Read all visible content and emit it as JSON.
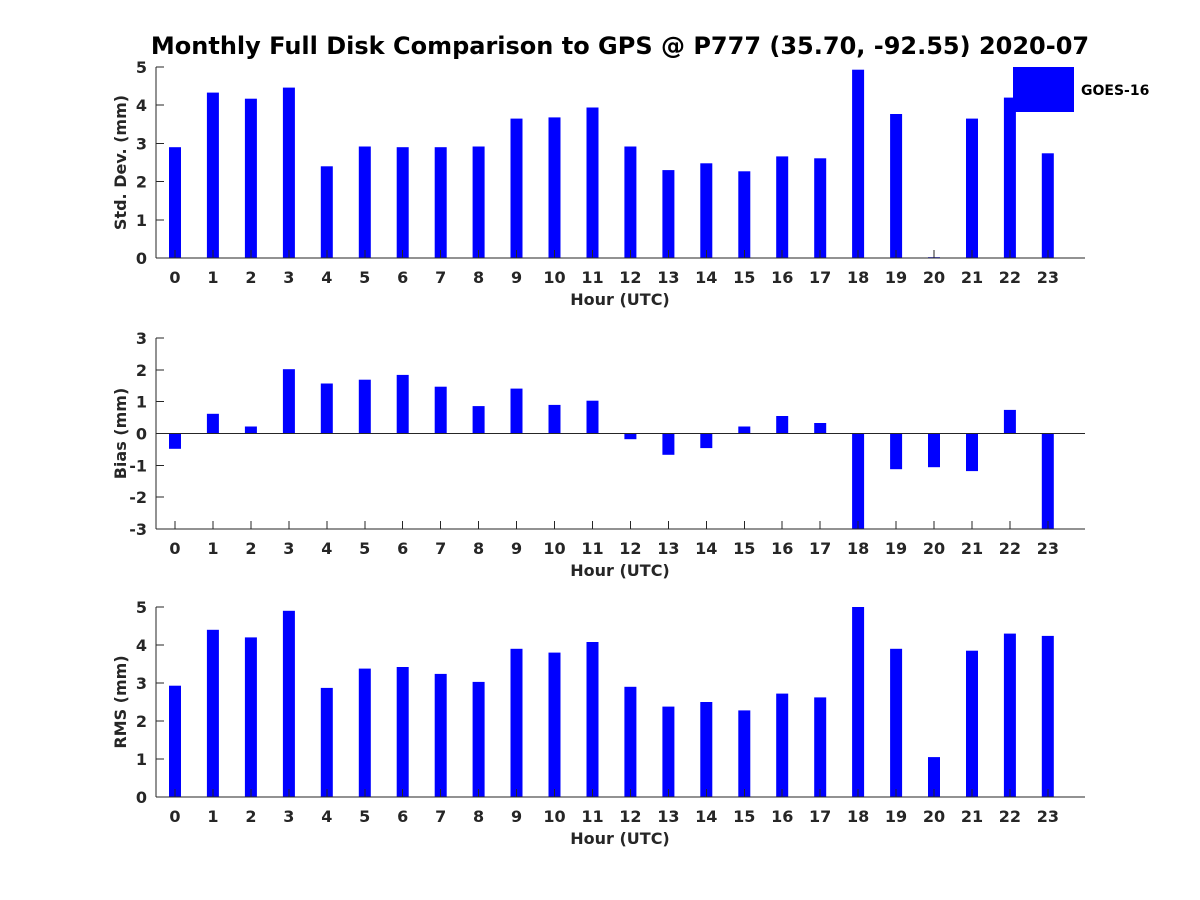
{
  "title": "Monthly Full Disk Comparison to GPS @ P777 (35.70, -92.55) 2020-07",
  "legend": {
    "label": "GOES-16",
    "color": "#0000ff"
  },
  "chart_data": [
    {
      "type": "bar",
      "id": "stddev",
      "ylabel": "Std. Dev. (mm)",
      "xlabel": "Hour (UTC)",
      "ylim": [
        0,
        5
      ],
      "yticks": [
        "0",
        "1",
        "2",
        "3",
        "4",
        "5"
      ],
      "categories": [
        "0",
        "1",
        "2",
        "3",
        "4",
        "5",
        "6",
        "7",
        "8",
        "9",
        "10",
        "11",
        "12",
        "13",
        "14",
        "15",
        "16",
        "17",
        "18",
        "19",
        "20",
        "21",
        "22",
        "23"
      ],
      "series": [
        {
          "name": "GOES-16",
          "color": "#0000ff",
          "values": [
            2.9,
            4.33,
            4.17,
            4.46,
            2.4,
            2.92,
            2.9,
            2.9,
            2.92,
            3.65,
            3.68,
            3.94,
            2.92,
            2.3,
            2.48,
            2.27,
            2.66,
            2.61,
            4.93,
            3.77,
            0.02,
            3.65,
            4.2,
            2.74
          ]
        }
      ]
    },
    {
      "type": "bar",
      "id": "bias",
      "ylabel": "Bias (mm)",
      "xlabel": "Hour (UTC)",
      "ylim": [
        -3,
        3
      ],
      "yticks": [
        "-3",
        "-2",
        "-1",
        "0",
        "1",
        "2",
        "3"
      ],
      "categories": [
        "0",
        "1",
        "2",
        "3",
        "4",
        "5",
        "6",
        "7",
        "8",
        "9",
        "10",
        "11",
        "12",
        "13",
        "14",
        "15",
        "16",
        "17",
        "18",
        "19",
        "20",
        "21",
        "22",
        "23"
      ],
      "series": [
        {
          "name": "GOES-16",
          "color": "#0000ff",
          "values": [
            -0.48,
            0.62,
            0.22,
            2.02,
            1.57,
            1.69,
            1.84,
            1.47,
            0.86,
            1.41,
            0.9,
            1.03,
            -0.18,
            -0.67,
            -0.46,
            0.22,
            0.55,
            0.33,
            -3.0,
            -1.12,
            -1.06,
            -1.18,
            0.74,
            -3.0
          ]
        }
      ]
    },
    {
      "type": "bar",
      "id": "rms",
      "ylabel": "RMS (mm)",
      "xlabel": "Hour (UTC)",
      "ylim": [
        0,
        5
      ],
      "yticks": [
        "0",
        "1",
        "2",
        "3",
        "4",
        "5"
      ],
      "categories": [
        "0",
        "1",
        "2",
        "3",
        "4",
        "5",
        "6",
        "7",
        "8",
        "9",
        "10",
        "11",
        "12",
        "13",
        "14",
        "15",
        "16",
        "17",
        "18",
        "19",
        "20",
        "21",
        "22",
        "23"
      ],
      "series": [
        {
          "name": "GOES-16",
          "color": "#0000ff",
          "values": [
            2.93,
            4.4,
            4.2,
            4.9,
            2.87,
            3.38,
            3.42,
            3.24,
            3.03,
            3.9,
            3.8,
            4.08,
            2.9,
            2.38,
            2.5,
            2.28,
            2.72,
            2.62,
            5.0,
            3.9,
            1.05,
            3.85,
            4.3,
            4.24
          ]
        }
      ]
    }
  ]
}
